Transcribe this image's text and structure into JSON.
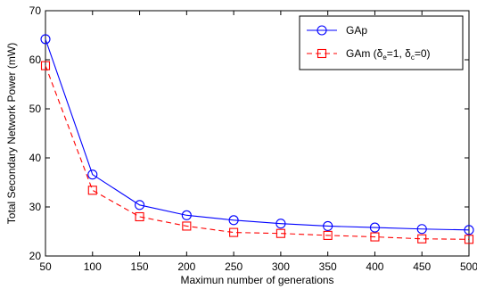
{
  "chart_data": {
    "type": "line",
    "xlabel": "Maximun number of generations",
    "ylabel": "Total Secondary Network Power (mW)",
    "xlim": [
      50,
      500
    ],
    "ylim": [
      20,
      70
    ],
    "xticks": [
      50,
      100,
      150,
      200,
      250,
      300,
      350,
      400,
      450,
      500
    ],
    "yticks": [
      20,
      30,
      40,
      50,
      60,
      70
    ],
    "grid": false,
    "legend_position": "top-right",
    "x": [
      50,
      100,
      150,
      200,
      250,
      300,
      350,
      400,
      450,
      500
    ],
    "series": [
      {
        "name": "GAp",
        "legend_main": "GAp",
        "color": "#0000ff",
        "line_style": "solid",
        "marker": "circle",
        "values": [
          64.2,
          36.6,
          30.4,
          28.3,
          27.3,
          26.6,
          26.1,
          25.8,
          25.5,
          25.3
        ]
      },
      {
        "name": "GAm (δe=1, δc=0)",
        "legend_main": "GAm (δ",
        "legend_sub1": "e",
        "legend_mid": "=1, δ",
        "legend_sub2": "c",
        "legend_end": "=0)",
        "color": "#ff0000",
        "line_style": "dashed",
        "marker": "square",
        "values": [
          58.8,
          33.4,
          28.0,
          26.1,
          24.8,
          24.6,
          24.2,
          23.9,
          23.5,
          23.4
        ]
      }
    ]
  }
}
